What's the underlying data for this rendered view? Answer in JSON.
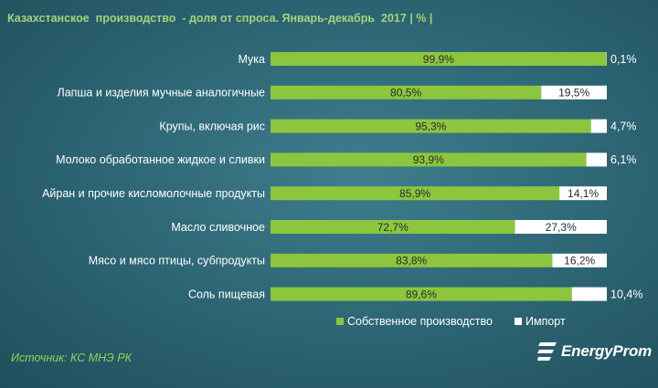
{
  "title": "Казахстанское  производство  - доля от спроса. Январь-декабрь  2017 | % |",
  "source": "Источник: КС МНЭ РК",
  "logo": {
    "text": "EnergyProm",
    "icon": "energyprom-logo-icon"
  },
  "colors": {
    "own": "#8cc63f",
    "import": "#ffffff",
    "title": "#a3d37a",
    "source": "#8fd35a"
  },
  "chart_data": {
    "type": "bar",
    "orientation": "horizontal",
    "stacked": true,
    "percent": true,
    "categories": [
      "Мука",
      "Лапша и изделия мучные аналогичные",
      "Крупы, включая рис",
      "Молоко обработанное жидкое и сливки",
      "Айран и прочие кисломолочные продукты",
      "Масло сливочное",
      "Мясо и мясо птицы, субпродукты",
      "Соль пищевая"
    ],
    "series": [
      {
        "name": "Собственное производство",
        "color": "#8cc63f",
        "values": [
          99.9,
          80.5,
          95.3,
          93.9,
          85.9,
          72.7,
          83.8,
          89.6
        ],
        "labels": [
          "99,9%",
          "80,5%",
          "95,3%",
          "93,9%",
          "85,9%",
          "72,7%",
          "83,8%",
          "89,6%"
        ]
      },
      {
        "name": "Импорт",
        "color": "#ffffff",
        "values": [
          0.1,
          19.5,
          4.7,
          6.1,
          14.1,
          27.3,
          16.2,
          10.4
        ],
        "labels": [
          "0,1%",
          "19,5%",
          "4,7%",
          "6,1%",
          "14,1%",
          "27,3%",
          "16,2%",
          "10,4%"
        ]
      }
    ],
    "xlim": [
      0,
      100
    ],
    "grid": false,
    "legend_position": "bottom"
  }
}
